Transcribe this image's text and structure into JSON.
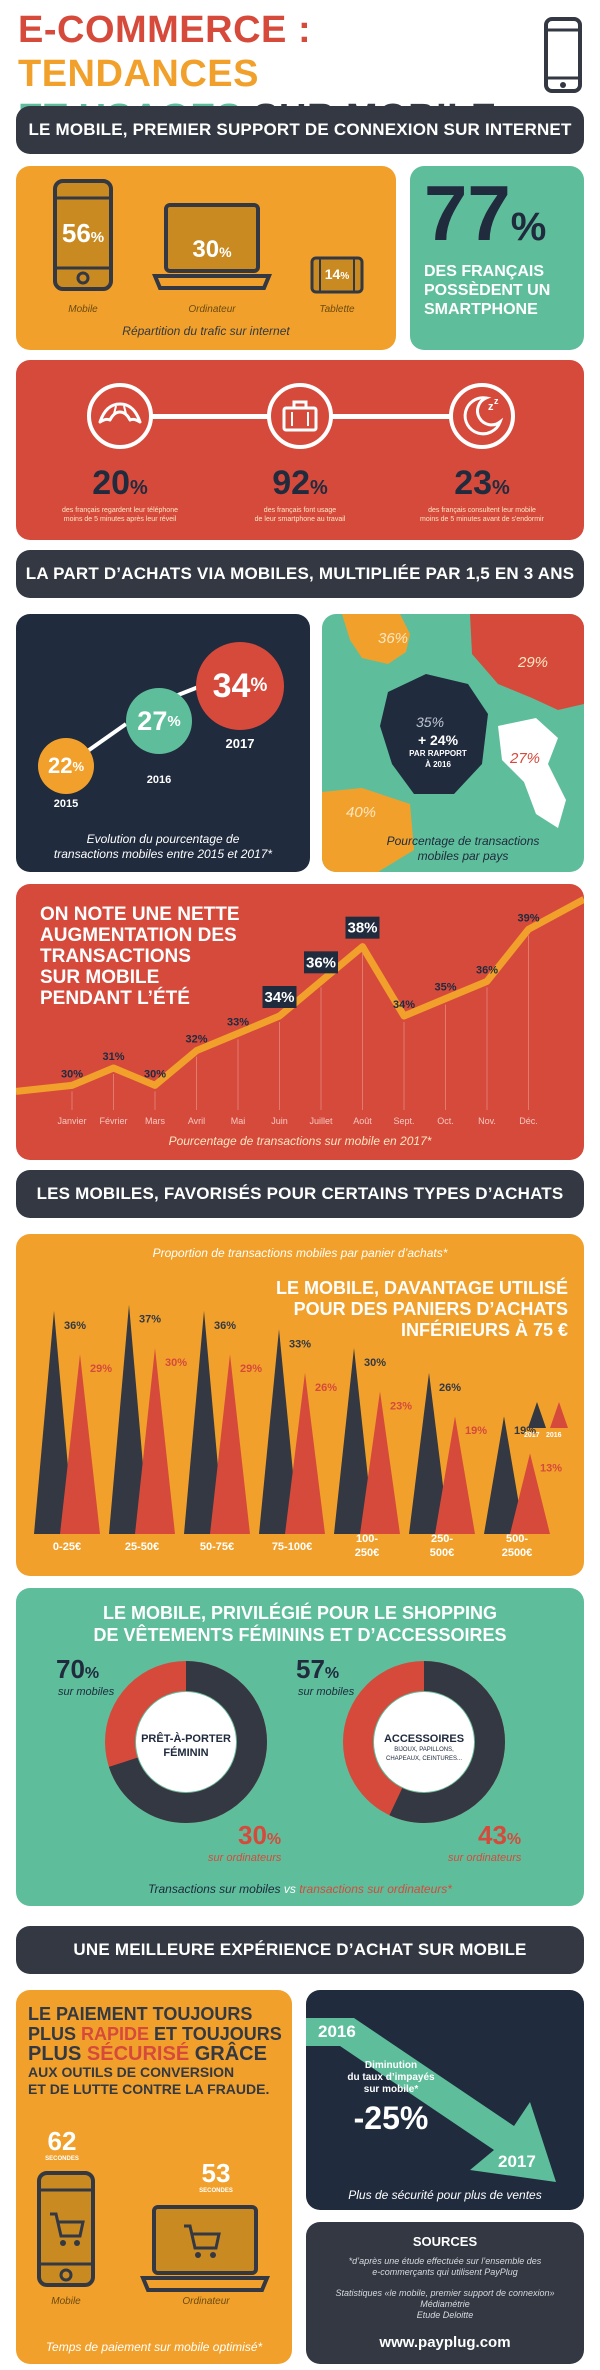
{
  "header": {
    "title_part1": "E-COMMERCE : ",
    "title_part2": "TENDANCES",
    "title_part3": "ET USAGES ",
    "title_part4": "SUR MOBILE"
  },
  "section1": {
    "banner": "LE MOBILE, PREMIER SUPPORT DE CONNEXION SUR INTERNET",
    "devices": [
      {
        "value": "56",
        "unit": "%",
        "label": "Mobile"
      },
      {
        "value": "30",
        "unit": "%",
        "label": "Ordinateur"
      },
      {
        "value": "14",
        "unit": "%",
        "label": "Tablette"
      }
    ],
    "devices_caption": "Répartition du trafic sur internet",
    "smartphone_value": "77",
    "smartphone_unit": "%",
    "smartphone_text_1": "DES FRANÇAIS",
    "smartphone_text_2": "POSSÈDENT UN",
    "smartphone_text_3": "SMARTPHONE"
  },
  "habits": [
    {
      "value": "20",
      "unit": "%",
      "line1": "des français regardent leur téléphone",
      "line2": "moins de 5 minutes après leur réveil",
      "icon": "croissant-icon"
    },
    {
      "value": "92",
      "unit": "%",
      "line1": "des français font usage",
      "line2": "de leur smartphone au travail",
      "icon": "briefcase-icon"
    },
    {
      "value": "23",
      "unit": "%",
      "line1": "des français consultent leur mobile",
      "line2": "moins de 5 minutes avant de s'endormir",
      "icon": "moon-icon"
    }
  ],
  "section2": {
    "banner": "LA PART D’ACHATS VIA MOBILES, MULTIPLIÉE PAR 1,5 EN 3 ANS",
    "evolution": [
      {
        "year": "2015",
        "value": "22",
        "unit": "%"
      },
      {
        "year": "2016",
        "value": "27",
        "unit": "%"
      },
      {
        "year": "2017",
        "value": "34",
        "unit": "%"
      }
    ],
    "evolution_caption_1": "Evolution du pourcentage de",
    "evolution_caption_2": "transactions mobiles entre 2015 et 2017*",
    "map_values": {
      "uk": "36%",
      "de": "29%",
      "fr": "35%",
      "it": "27%",
      "es": "40%"
    },
    "map_fr_growth": "+ 24%",
    "map_fr_growth_text_1": "PAR RAPPORT",
    "map_fr_growth_text_2": "À 2016",
    "map_caption_1": "Pourcentage de transactions",
    "map_caption_2": "mobiles par pays"
  },
  "monthly": {
    "headline_1": "ON NOTE UNE NETTE",
    "headline_2": "AUGMENTATION DES",
    "headline_3": "TRANSACTIONS",
    "headline_4": "SUR MOBILE",
    "headline_5": "PENDANT L’ÉTÉ",
    "caption": "Pourcentage de transactions sur mobile en 2017*"
  },
  "chart_data": {
    "type": "line",
    "categories": [
      "Janvier",
      "Février",
      "Mars",
      "Avril",
      "Mai",
      "Juin",
      "Juillet",
      "Août",
      "Sept.",
      "Oct.",
      "Nov.",
      "Déc."
    ],
    "values": [
      30,
      31,
      30,
      32,
      33,
      34,
      36,
      38,
      34,
      35,
      36,
      39
    ],
    "title": "",
    "xlabel": "",
    "ylabel": "",
    "highlight": [
      "Juin",
      "Juillet",
      "Août"
    ]
  },
  "section3": {
    "banner": "LES MOBILES, FAVORISÉS POUR CERTAINS TYPES D’ACHATS",
    "caption": "Proportion de transactions mobiles par panier d’achats*",
    "headline_1": "LE MOBILE, DAVANTAGE UTILISÉ",
    "headline_2": "POUR DES PANIERS D’ACHATS",
    "headline_3": "INFÉRIEURS À 75 €",
    "legend": [
      "2017",
      "2016"
    ],
    "baskets": [
      {
        "label_1": "0-25€",
        "label_2": "",
        "v2017": 36,
        "v2016": 29
      },
      {
        "label_1": "25-50€",
        "label_2": "",
        "v2017": 37,
        "v2016": 30
      },
      {
        "label_1": "50-75€",
        "label_2": "",
        "v2017": 36,
        "v2016": 29
      },
      {
        "label_1": "75-100€",
        "label_2": "",
        "v2017": 33,
        "v2016": 26
      },
      {
        "label_1": "100-",
        "label_2": "250€",
        "v2017": 30,
        "v2016": 23
      },
      {
        "label_1": "250-",
        "label_2": "500€",
        "v2017": 26,
        "v2016": 19
      },
      {
        "label_1": "500-",
        "label_2": "2500€",
        "v2017": 19,
        "v2016": 13
      }
    ]
  },
  "section4": {
    "title_1": "LE MOBILE, PRIVILÉGIÉ POUR LE SHOPPING",
    "title_2": "DE VÊTEMENTS FÉMININS ET D’ACCESSOIRES",
    "left": {
      "mobile_value": "70",
      "mobile_label": "sur mobiles",
      "center_1": "PRÊT-À-PORTER",
      "center_2": "FÉMININ",
      "desktop_value": "30",
      "desktop_label": "sur ordinateurs"
    },
    "right": {
      "mobile_value": "57",
      "mobile_label": "sur mobiles",
      "center_1": "ACCESSOIRES",
      "center_2": "BIJOUX, PAPILLONS,",
      "center_3": "CHAPEAUX, CEINTURES...",
      "desktop_value": "43",
      "desktop_label": "sur ordinateurs"
    },
    "unit": "%",
    "caption_mobile": "Transactions sur mobiles",
    "caption_vs": " vs ",
    "caption_desktop": "transactions sur ordinateurs*"
  },
  "section5": {
    "banner": "UNE MEILLEURE EXPÉRIENCE D’ACHAT SUR MOBILE",
    "headline_1": "LE PAIEMENT TOUJOURS",
    "headline_2a": "PLUS ",
    "headline_2b": "RAPIDE",
    "headline_2c": " ET TOUJOURS",
    "headline_3a": "PLUS ",
    "headline_3b": "SÉCURISÉ",
    "headline_3c": " GRÂCE",
    "headline_4": "AUX OUTILS DE CONVERSION",
    "headline_5": "ET DE LUTTE CONTRE LA FRAUDE.",
    "mobile_seconds": "62",
    "desktop_seconds": "53",
    "seconds_label": "SECONDES",
    "mobile_label": "Mobile",
    "desktop_label": "Ordinateur",
    "payment_caption": "Temps de paiement sur mobile optimisé*",
    "fraud_year_start": "2016",
    "fraud_year_end": "2017",
    "fraud_label_1": "Diminution",
    "fraud_label_2": "du taux d’impayés",
    "fraud_label_3": "sur mobile*",
    "fraud_value": "-25%",
    "fraud_caption": "Plus de sécurité pour plus de ventes"
  },
  "sources": {
    "title": "SOURCES",
    "line1": "*d’après une étude effectuée sur l’ensemble des",
    "line2": "e-commerçants qui utilisent PayPlug",
    "line3": "Statistiques «le mobile, premier support de connexion»",
    "line4": "Médiamétrie",
    "line5": "Etude Deloitte",
    "url": "www.payplug.com"
  },
  "colors": {
    "orange": "#f1a12b",
    "red": "#d64a3c",
    "navy": "#202b3e",
    "green": "#5ebe9b",
    "dark": "#333842",
    "cream": "#fbe6c2"
  }
}
